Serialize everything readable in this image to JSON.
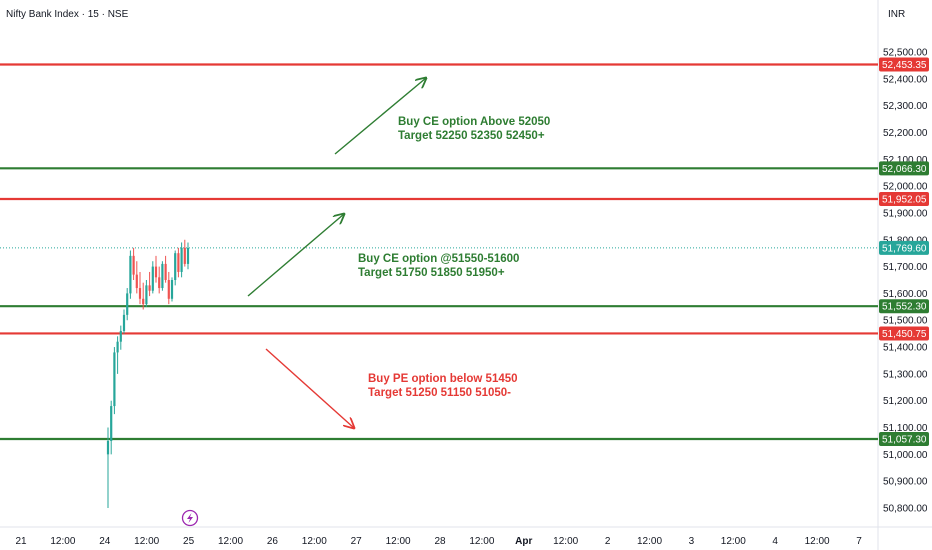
{
  "header": {
    "title": "Nifty Bank Index · 15 · NSE",
    "currency": "INR"
  },
  "colors": {
    "up": "#26a69a",
    "down": "#ef5350",
    "red_level": "#e53935",
    "green_level": "#2e7d32",
    "note_green": "#2e7d32",
    "note_red": "#e53935",
    "axis_text": "#131722",
    "last_price": "#26a69a",
    "bolt": "#9c27b0"
  },
  "chart_data": {
    "type": "candlestick",
    "y_axis": {
      "ticks": [
        "52,500.00",
        "52,400.00",
        "52,300.00",
        "52,200.00",
        "52,100.00",
        "52,000.00",
        "51,900.00",
        "51,800.00",
        "51,700.00",
        "51,600.00",
        "51,500.00",
        "51,400.00",
        "51,300.00",
        "51,200.00",
        "51,100.00",
        "51,000.00",
        "50,900.00",
        "50,800.00"
      ],
      "range": [
        50760,
        52600
      ]
    },
    "x_axis": {
      "ticks": [
        "21",
        "12:00",
        "24",
        "12:00",
        "25",
        "12:00",
        "26",
        "12:00",
        "27",
        "12:00",
        "28",
        "12:00",
        "Apr",
        "12:00",
        "2",
        "12:00",
        "3",
        "12:00",
        "4",
        "12:00",
        "7"
      ]
    },
    "levels": [
      {
        "label": "52,453.35",
        "value": 52453.35,
        "kind": "red"
      },
      {
        "label": "52,066.30",
        "value": 52066.3,
        "kind": "green"
      },
      {
        "label": "51,952.05",
        "value": 51952.05,
        "kind": "red"
      },
      {
        "label": "51,552.30",
        "value": 51552.3,
        "kind": "green"
      },
      {
        "label": "51,450.75",
        "value": 51450.75,
        "kind": "red"
      },
      {
        "label": "51,057.30",
        "value": 51057.3,
        "kind": "green"
      }
    ],
    "last_price": {
      "label": "51,769.60",
      "value": 51769.6
    },
    "candles": [
      {
        "o": 51000,
        "h": 51100,
        "l": 50800,
        "c": 51050
      },
      {
        "o": 51050,
        "h": 51200,
        "l": 51000,
        "c": 51180
      },
      {
        "o": 51180,
        "h": 51400,
        "l": 51150,
        "c": 51380
      },
      {
        "o": 51380,
        "h": 51440,
        "l": 51300,
        "c": 51420
      },
      {
        "o": 51420,
        "h": 51480,
        "l": 51390,
        "c": 51460
      },
      {
        "o": 51460,
        "h": 51540,
        "l": 51450,
        "c": 51520
      },
      {
        "o": 51520,
        "h": 51620,
        "l": 51500,
        "c": 51600
      },
      {
        "o": 51600,
        "h": 51760,
        "l": 51580,
        "c": 51740
      },
      {
        "o": 51740,
        "h": 51770,
        "l": 51650,
        "c": 51670
      },
      {
        "o": 51670,
        "h": 51720,
        "l": 51600,
        "c": 51620
      },
      {
        "o": 51620,
        "h": 51680,
        "l": 51560,
        "c": 51580
      },
      {
        "o": 51580,
        "h": 51640,
        "l": 51540,
        "c": 51560
      },
      {
        "o": 51560,
        "h": 51650,
        "l": 51550,
        "c": 51630
      },
      {
        "o": 51630,
        "h": 51680,
        "l": 51590,
        "c": 51610
      },
      {
        "o": 51610,
        "h": 51720,
        "l": 51600,
        "c": 51700
      },
      {
        "o": 51700,
        "h": 51740,
        "l": 51640,
        "c": 51660
      },
      {
        "o": 51660,
        "h": 51700,
        "l": 51600,
        "c": 51620
      },
      {
        "o": 51620,
        "h": 51720,
        "l": 51610,
        "c": 51710
      },
      {
        "o": 51710,
        "h": 51740,
        "l": 51640,
        "c": 51650
      },
      {
        "o": 51650,
        "h": 51680,
        "l": 51560,
        "c": 51580
      },
      {
        "o": 51580,
        "h": 51660,
        "l": 51570,
        "c": 51650
      },
      {
        "o": 51650,
        "h": 51760,
        "l": 51630,
        "c": 51750
      },
      {
        "o": 51750,
        "h": 51770,
        "l": 51660,
        "c": 51680
      },
      {
        "o": 51680,
        "h": 51790,
        "l": 51660,
        "c": 51770
      },
      {
        "o": 51770,
        "h": 51800,
        "l": 51700,
        "c": 51710
      },
      {
        "o": 51710,
        "h": 51790,
        "l": 51690,
        "c": 51769.6
      }
    ],
    "annotations": [
      {
        "line1": "Buy CE option Above 52050",
        "line2": "Target 52250 52350 52450+",
        "color": "green"
      },
      {
        "line1": "Buy CE option @51550-51600",
        "line2": "Target 51750 51850 51950+",
        "color": "green"
      },
      {
        "line1": "Buy PE option below 51450",
        "line2": "Target 51250 51150 51050-",
        "color": "red"
      }
    ]
  }
}
